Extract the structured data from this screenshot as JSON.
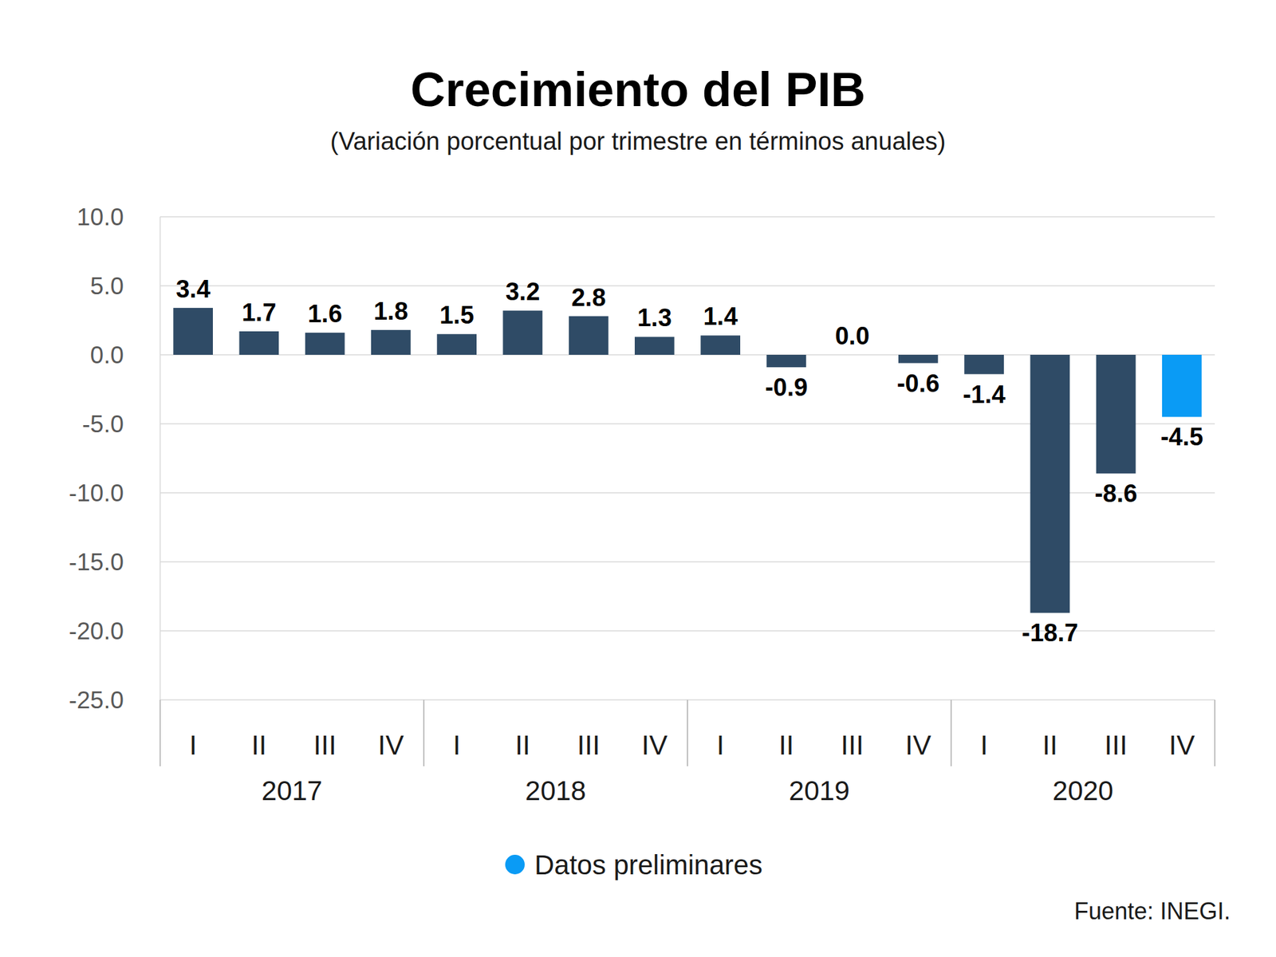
{
  "chart_data": {
    "type": "bar",
    "title": "Crecimiento del PIB",
    "subtitle": "(Variación porcentual por trimestre en términos anuales)",
    "categories": [
      "I",
      "II",
      "III",
      "IV",
      "I",
      "II",
      "III",
      "IV",
      "I",
      "II",
      "III",
      "IV",
      "I",
      "II",
      "III",
      "IV"
    ],
    "groups": [
      "2017",
      "2018",
      "2019",
      "2020"
    ],
    "values": [
      3.4,
      1.7,
      1.6,
      1.8,
      1.5,
      3.2,
      2.8,
      1.3,
      1.4,
      -0.9,
      0.0,
      -0.6,
      -1.4,
      -18.7,
      -8.6,
      -4.5
    ],
    "value_labels": [
      "3.4",
      "1.7",
      "1.6",
      "1.8",
      "1.5",
      "3.2",
      "2.8",
      "1.3",
      "1.4",
      "-0.9",
      "0.0",
      "-0.6",
      "-1.4",
      "-18.7",
      "-8.6",
      "-4.5"
    ],
    "colors": [
      "#2f4b66",
      "#2f4b66",
      "#2f4b66",
      "#2f4b66",
      "#2f4b66",
      "#2f4b66",
      "#2f4b66",
      "#2f4b66",
      "#2f4b66",
      "#2f4b66",
      "#2f4b66",
      "#2f4b66",
      "#2f4b66",
      "#2f4b66",
      "#2f4b66",
      "#0a9bf5"
    ],
    "ylim": [
      -25,
      10
    ],
    "yticks": [
      {
        "value": -25,
        "label": "-25.0"
      },
      {
        "value": -20,
        "label": "-20.0"
      },
      {
        "value": -15,
        "label": "-15.0"
      },
      {
        "value": -10,
        "label": "-10.0"
      },
      {
        "value": -5,
        "label": "-5.0"
      },
      {
        "value": 0,
        "label": "0.0"
      },
      {
        "value": 5,
        "label": "5.0"
      },
      {
        "value": 10,
        "label": "10.0"
      }
    ],
    "grid": true,
    "data_labels": true,
    "legend": "bottom",
    "legend_items": [
      {
        "label": "Datos preliminares",
        "color": "#0a9bf5"
      }
    ],
    "source": "Fuente: INEGI."
  }
}
